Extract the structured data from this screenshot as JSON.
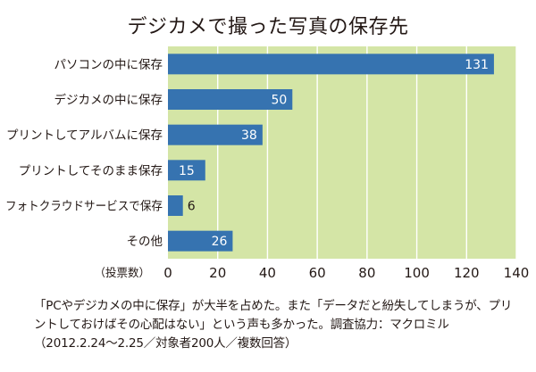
{
  "chart_data": {
    "type": "bar",
    "orientation": "horizontal",
    "title": "デジカメで撮った写真の保存先",
    "categories": [
      "パソコンの中に保存",
      "デジカメの中に保存",
      "プリントしてアルバムに保存",
      "プリントしてそのまま保存",
      "フォトクラウドサービスで保存",
      "その他"
    ],
    "values": [
      131,
      50,
      38,
      15,
      6,
      26
    ],
    "xlabel": "（投票数）",
    "xticks": [
      0,
      20,
      40,
      60,
      80,
      100,
      120,
      140
    ],
    "xlim": [
      0,
      140
    ],
    "grid": true,
    "colors": {
      "plot_bg": "#d4e5a6",
      "bar": "#3673b0",
      "grid": "#ffffff",
      "text": "#231815"
    }
  },
  "caption": "「PCやデジカメの中に保存」が大半を占めた。また「データだと紛失してしまうが、プリントしておけばその心配はない」という声も多かった。調査協力：マクロミル（2012.2.24〜2.25／対象者200人／複数回答）"
}
